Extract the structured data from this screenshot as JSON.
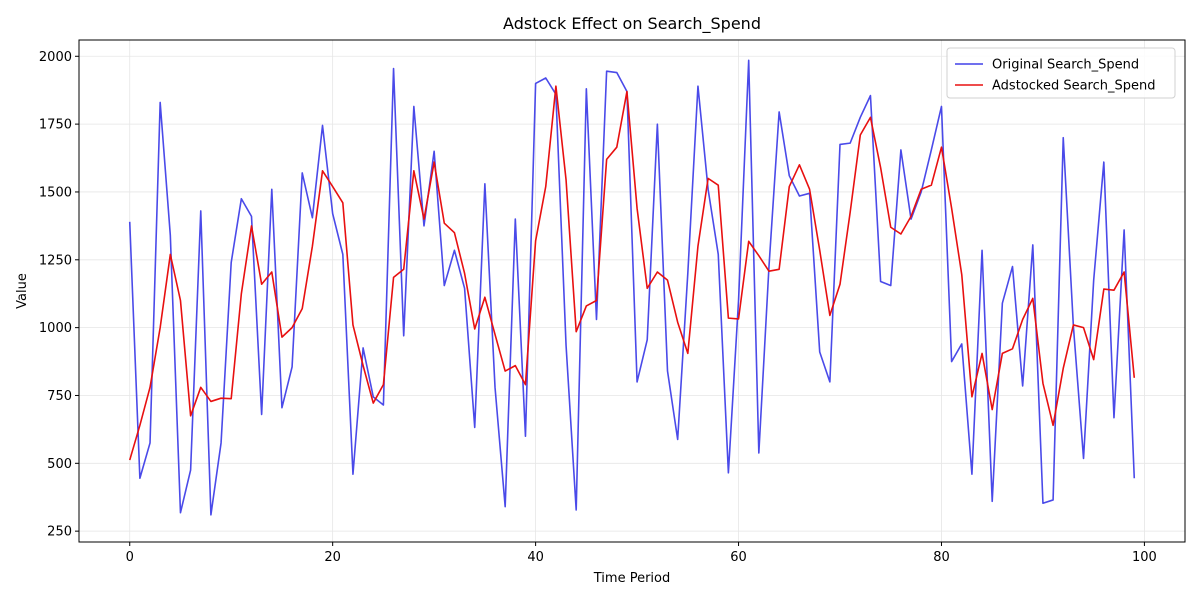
{
  "chart_data": {
    "type": "line",
    "title": "Adstock Effect on Search_Spend",
    "xlabel": "Time Period",
    "ylabel": "Value",
    "xlim": [
      -5,
      104
    ],
    "ylim": [
      210,
      2060
    ],
    "xticks": [
      0,
      20,
      40,
      60,
      80,
      100
    ],
    "yticks": [
      250,
      500,
      750,
      1000,
      1250,
      1500,
      1750,
      2000
    ],
    "grid": true,
    "legend_position": "top-right",
    "series": [
      {
        "name": "Original Search_Spend",
        "color": "#4040e8",
        "values": [
          1390,
          445,
          575,
          1830,
          1340,
          318,
          475,
          1430,
          310,
          575,
          1240,
          1475,
          1410,
          680,
          1510,
          705,
          855,
          1570,
          1405,
          1745,
          1420,
          1270,
          460,
          925,
          745,
          715,
          1955,
          970,
          1815,
          1375,
          1650,
          1155,
          1285,
          1145,
          632,
          1530,
          780,
          340,
          1400,
          600,
          1900,
          1920,
          1860,
          935,
          328,
          1880,
          1030,
          1945,
          1940,
          1870,
          800,
          955,
          1750,
          840,
          588,
          1200,
          1890,
          1510,
          1270,
          465,
          1100,
          1985,
          538,
          1225,
          1795,
          1560,
          1485,
          1495,
          910,
          800,
          1675,
          1680,
          1775,
          1855,
          1170,
          1155,
          1655,
          1400,
          1500,
          1655,
          1815,
          875,
          940,
          460,
          1285,
          360,
          1090,
          1225,
          785,
          1305,
          353,
          365,
          1700,
          1005,
          518,
          1175,
          1610,
          668,
          1360,
          445
        ]
      },
      {
        "name": "Adstocked Search_Spend",
        "color": "#e81010",
        "values": [
          512,
          640,
          780,
          1000,
          1270,
          1100,
          675,
          780,
          728,
          740,
          738,
          1125,
          1375,
          1160,
          1205,
          965,
          1000,
          1070,
          1300,
          1578,
          1520,
          1460,
          1010,
          860,
          722,
          790,
          1185,
          1215,
          1578,
          1400,
          1610,
          1385,
          1350,
          1200,
          995,
          1112,
          975,
          840,
          860,
          790,
          1320,
          1520,
          1890,
          1545,
          985,
          1080,
          1100,
          1620,
          1665,
          1870,
          1440,
          1145,
          1205,
          1175,
          1020,
          905,
          1300,
          1550,
          1525,
          1035,
          1032,
          1318,
          1265,
          1208,
          1215,
          1520,
          1600,
          1510,
          1285,
          1045,
          1160,
          1425,
          1710,
          1775,
          1590,
          1370,
          1345,
          1410,
          1510,
          1525,
          1665,
          1440,
          1195,
          745,
          905,
          698,
          905,
          922,
          1030,
          1108,
          795,
          640,
          850,
          1010,
          1000,
          882,
          1142,
          1138,
          1205,
          815
        ]
      }
    ]
  }
}
